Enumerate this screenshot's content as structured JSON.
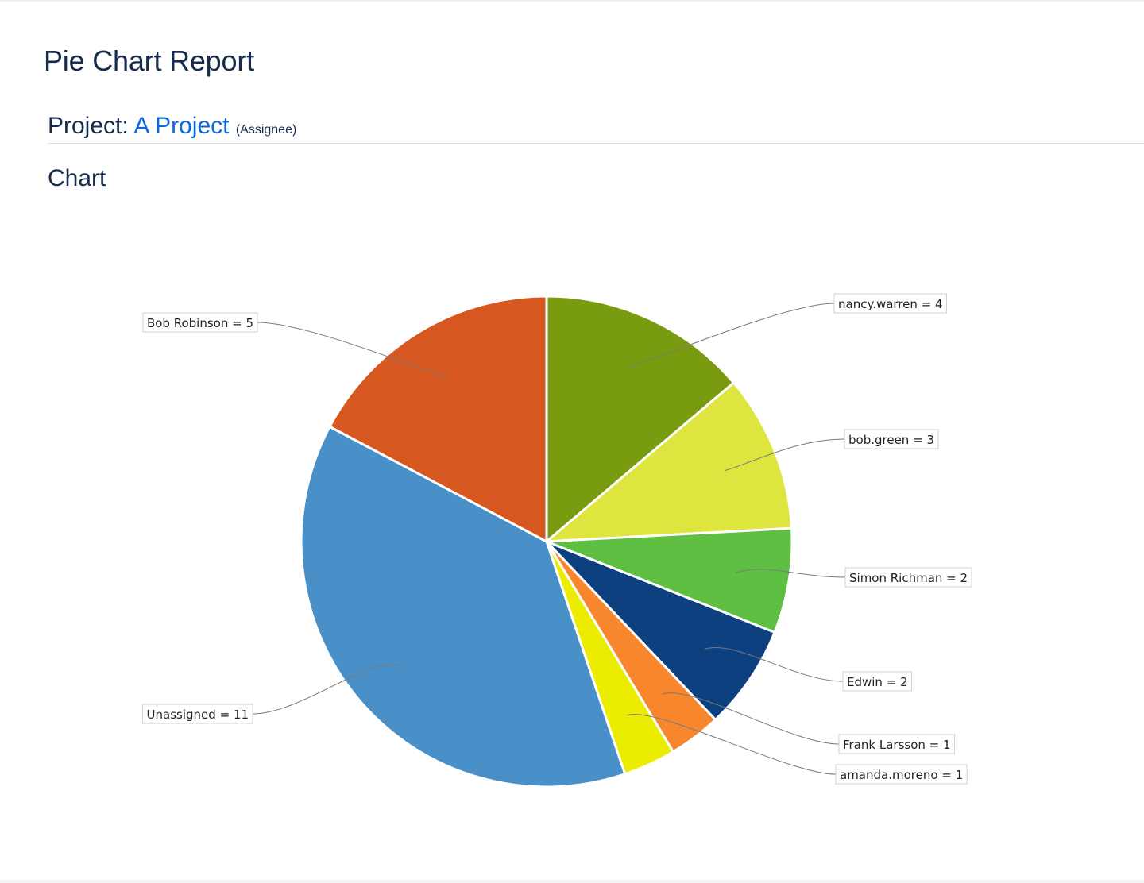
{
  "page": {
    "title": "Pie Chart Report",
    "project_prefix": "Project:",
    "project_name": "A Project",
    "statistic": "(Assignee)",
    "section_title": "Chart"
  },
  "chart_data": {
    "type": "pie",
    "title": "",
    "start_angle_deg": 0,
    "direction": "clockwise",
    "slices": [
      {
        "label": "nancy.warren",
        "value": 4,
        "display": "nancy.warren = 4",
        "color": "#789b10"
      },
      {
        "label": "bob.green",
        "value": 3,
        "display": "bob.green = 3",
        "color": "#dee53f"
      },
      {
        "label": "Simon Richman",
        "value": 2,
        "display": "Simon Richman = 2",
        "color": "#5fbf43"
      },
      {
        "label": "Edwin",
        "value": 2,
        "display": "Edwin = 2",
        "color": "#0d407f"
      },
      {
        "label": "Frank Larsson",
        "value": 1,
        "display": "Frank Larsson = 1",
        "color": "#f7862c"
      },
      {
        "label": "amanda.moreno",
        "value": 1,
        "display": "amanda.moreno = 1",
        "color": "#ecec00"
      },
      {
        "label": "Unassigned",
        "value": 11,
        "display": "Unassigned = 11",
        "color": "#4990c9"
      },
      {
        "label": "Bob Robinson",
        "value": 5,
        "display": "Bob Robinson = 5",
        "color": "#d6571f"
      }
    ]
  }
}
